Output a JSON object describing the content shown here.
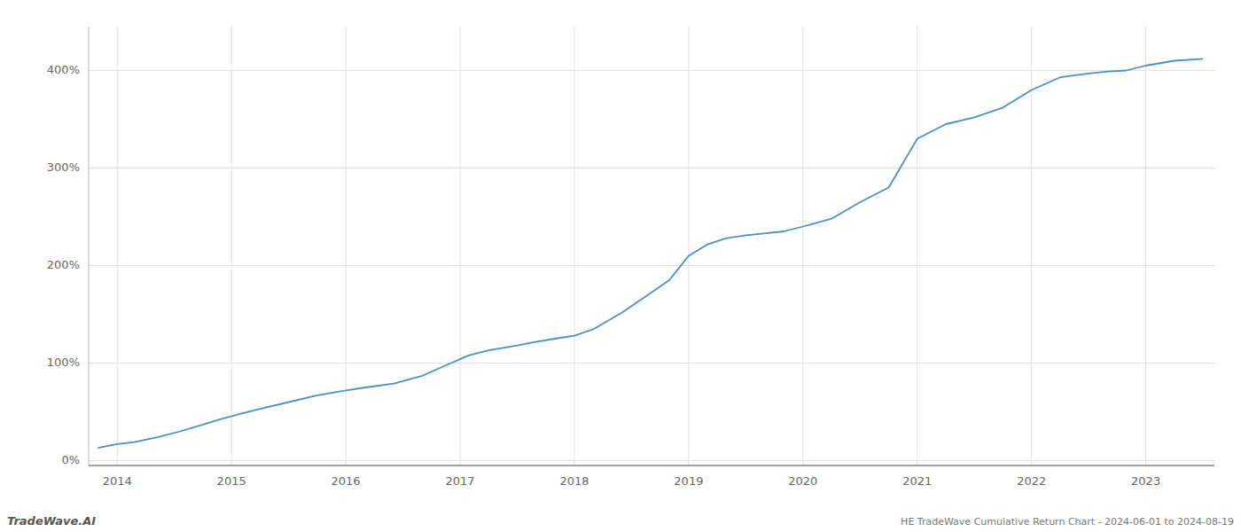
{
  "chart_data": {
    "type": "line",
    "title": "HE TradeWave Cumulative Return Chart - 2024-06-01 to 2024-08-19",
    "annotations": [
      "TradeWave.AI"
    ],
    "color": "#4a90c4",
    "grid": true,
    "x": [
      2013.83,
      2014.0,
      2014.15,
      2014.35,
      2014.55,
      2014.75,
      2014.92,
      2015.08,
      2015.25,
      2015.5,
      2015.75,
      2016.0,
      2016.17,
      2016.42,
      2016.67,
      2016.92,
      2017.08,
      2017.25,
      2017.5,
      2017.67,
      2017.83,
      2018.0,
      2018.17,
      2018.42,
      2018.67,
      2018.83,
      2019.0,
      2019.17,
      2019.33,
      2019.5,
      2019.67,
      2019.83,
      2020.0,
      2020.25,
      2020.5,
      2020.75,
      2021.0,
      2021.25,
      2021.5,
      2021.75,
      2022.0,
      2022.25,
      2022.5,
      2022.67,
      2022.83,
      2023.0,
      2023.25,
      2023.5
    ],
    "values": [
      13,
      17,
      19,
      24,
      30,
      37,
      43,
      48,
      53,
      60,
      67,
      72,
      75,
      79,
      87,
      100,
      108,
      113,
      118,
      122,
      125,
      128,
      135,
      152,
      172,
      185,
      210,
      222,
      228,
      231,
      233,
      235,
      240,
      248,
      265,
      280,
      330,
      345,
      352,
      362,
      380,
      393,
      397,
      399,
      400,
      405,
      410,
      412
    ],
    "xlim": [
      2013.75,
      2023.6
    ],
    "xticks": [
      2014,
      2015,
      2016,
      2017,
      2018,
      2019,
      2020,
      2021,
      2022,
      2023
    ],
    "ylim": [
      -5,
      445
    ],
    "yticks": [
      {
        "value": 0,
        "label": "0%"
      },
      {
        "value": 100,
        "label": "100%"
      },
      {
        "value": 200,
        "label": "200%"
      },
      {
        "value": 300,
        "label": "300%"
      },
      {
        "value": 400,
        "label": "400%"
      }
    ]
  }
}
